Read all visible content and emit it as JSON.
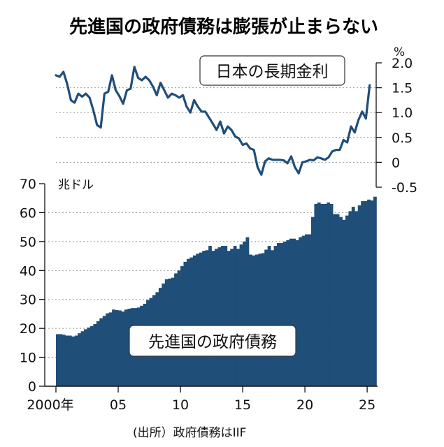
{
  "colors": {
    "line": "#1f4e79",
    "bar": "#1f4e79",
    "grid": "#999999",
    "text": "#111111"
  },
  "chart_data": {
    "title": "先進国の政府債務は膨張が止まらない",
    "source": "(出所）政府債務はIIF",
    "x_ticks": [
      {
        "value": 2000,
        "label": "2000年"
      },
      {
        "value": 2005,
        "label": "05"
      },
      {
        "value": 2010,
        "label": "10"
      },
      {
        "value": 2015,
        "label": "15"
      },
      {
        "value": 2020,
        "label": "20"
      },
      {
        "value": 2025,
        "label": "25"
      }
    ],
    "xlim": [
      2000,
      2025.5
    ],
    "line": {
      "type": "line",
      "name": "日本の長期金利",
      "unit": "%",
      "ylim": [
        -0.5,
        2.0
      ],
      "y_ticks": [
        "2.0",
        "1.5",
        "1.0",
        "0.5",
        "0",
        "-0.5"
      ],
      "y_tick_values": [
        2.0,
        1.5,
        1.0,
        0.5,
        0,
        -0.5
      ],
      "x": [
        2000.0,
        2000.3,
        2000.6,
        2000.9,
        2001.2,
        2001.5,
        2001.8,
        2002.1,
        2002.4,
        2002.7,
        2003.0,
        2003.3,
        2003.6,
        2003.9,
        2004.2,
        2004.5,
        2004.8,
        2005.1,
        2005.4,
        2005.7,
        2006.0,
        2006.3,
        2006.6,
        2006.9,
        2007.2,
        2007.5,
        2007.8,
        2008.1,
        2008.4,
        2008.7,
        2009.0,
        2009.3,
        2009.6,
        2009.9,
        2010.2,
        2010.5,
        2010.8,
        2011.1,
        2011.4,
        2011.7,
        2012.0,
        2012.3,
        2012.6,
        2012.9,
        2013.2,
        2013.5,
        2013.8,
        2014.1,
        2014.4,
        2014.7,
        2015.0,
        2015.3,
        2015.6,
        2015.9,
        2016.2,
        2016.5,
        2016.8,
        2017.1,
        2017.4,
        2017.7,
        2018.0,
        2018.3,
        2018.6,
        2018.9,
        2019.2,
        2019.5,
        2019.8,
        2020.1,
        2020.4,
        2020.7,
        2021.0,
        2021.3,
        2021.6,
        2021.9,
        2022.2,
        2022.5,
        2022.8,
        2023.1,
        2023.4,
        2023.7,
        2024.0,
        2024.3,
        2024.6,
        2024.9,
        2025.2
      ],
      "values": [
        1.75,
        1.72,
        1.82,
        1.58,
        1.25,
        1.2,
        1.38,
        1.32,
        1.38,
        1.3,
        1.05,
        0.75,
        0.7,
        1.38,
        1.42,
        1.75,
        1.45,
        1.33,
        1.18,
        1.45,
        1.48,
        1.92,
        1.7,
        1.65,
        1.72,
        1.65,
        1.52,
        1.35,
        1.6,
        1.45,
        1.3,
        1.38,
        1.35,
        1.3,
        1.35,
        1.12,
        1.0,
        1.25,
        1.12,
        1.02,
        1.02,
        0.9,
        0.78,
        0.65,
        0.82,
        0.58,
        0.72,
        0.65,
        0.52,
        0.48,
        0.35,
        0.38,
        0.28,
        0.25,
        -0.1,
        -0.25,
        0.02,
        0.08,
        0.05,
        0.05,
        0.05,
        0.04,
        -0.02,
        0.12,
        -0.1,
        -0.22,
        0.0,
        0.02,
        0.05,
        0.04,
        0.1,
        0.08,
        0.05,
        0.1,
        0.22,
        0.25,
        0.25,
        0.45,
        0.4,
        0.72,
        0.6,
        0.85,
        1.02,
        0.88,
        1.55
      ]
    },
    "bars": {
      "type": "bar",
      "name": "先進国の政府債務",
      "unit": "兆ドル",
      "ylim": [
        0,
        70
      ],
      "y_ticks": [
        "70",
        "60",
        "50",
        "40",
        "30",
        "20",
        "10",
        "0"
      ],
      "y_tick_values": [
        70,
        60,
        50,
        40,
        30,
        20,
        10,
        0
      ],
      "start": 2000.0,
      "step": 0.25,
      "values": [
        18,
        18,
        17.8,
        17.5,
        17.5,
        17.2,
        17.5,
        18.3,
        19,
        19.7,
        20.3,
        20.8,
        21.5,
        22.5,
        23.5,
        24.3,
        25.2,
        25.5,
        26.5,
        26.3,
        26.2,
        25.8,
        26.5,
        26.8,
        27.0,
        27.0,
        27.2,
        27.8,
        28.5,
        29.8,
        30.5,
        31.5,
        32.5,
        34.0,
        35.5,
        37,
        37.2,
        37.5,
        39,
        40,
        41.5,
        43,
        44,
        44.5,
        45.2,
        45.8,
        46.2,
        46.8,
        47,
        48.5,
        46.8,
        47.5,
        48,
        48.5,
        48.5,
        46.8,
        47.5,
        48.5,
        47.5,
        49.0,
        50,
        51.5,
        45.5,
        45.2,
        45.5,
        45.8,
        46,
        47.2,
        48.5,
        47,
        48.5,
        49.5,
        49.5,
        50,
        50.5,
        51,
        51,
        50.5,
        51.5,
        52,
        52.5,
        52.5,
        58.5,
        63,
        63.5,
        63,
        63,
        63.5,
        63,
        59.5,
        59.5,
        58.5,
        57.5,
        59,
        60.5,
        62,
        60.5,
        62.5,
        64,
        64,
        64.5,
        64.2,
        65.5
      ]
    }
  }
}
